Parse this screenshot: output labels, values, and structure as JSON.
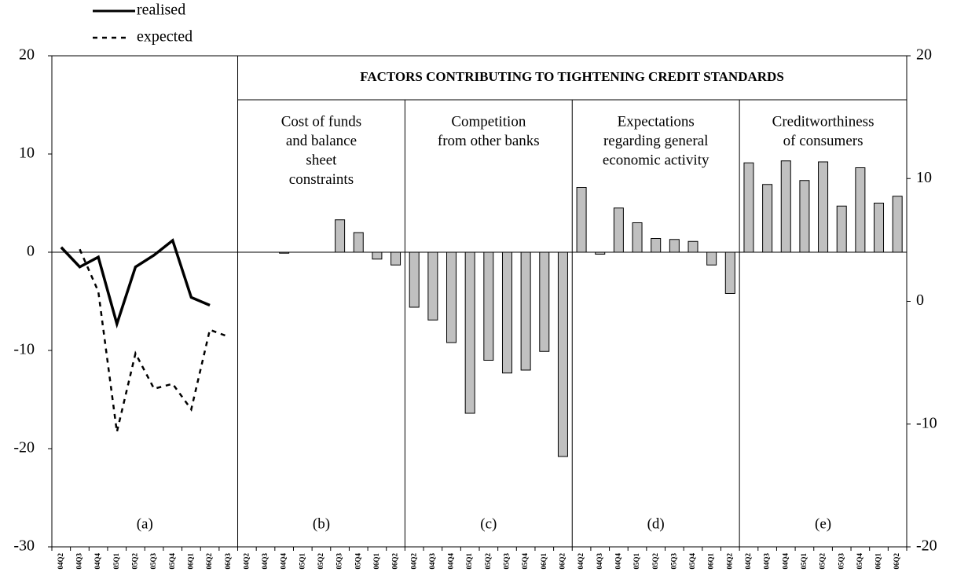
{
  "chart_data": {
    "type": "bar",
    "categories": [
      "04Q2",
      "04Q3",
      "04Q4",
      "05Q1",
      "05Q2",
      "05Q3",
      "05Q4",
      "06Q1",
      "06Q2",
      "06Q3",
      "04Q2",
      "04Q3",
      "04Q4",
      "05Q1",
      "05Q2",
      "05Q3",
      "05Q4",
      "06Q1",
      "06Q2",
      "04Q2",
      "04Q3",
      "04Q4",
      "05Q1",
      "05Q2",
      "05Q3",
      "05Q4",
      "06Q1",
      "06Q2",
      "04Q2",
      "04Q3",
      "04Q4",
      "05Q1",
      "05Q2",
      "05Q3",
      "05Q4",
      "06Q1",
      "06Q2",
      "04Q2",
      "04Q3",
      "04Q4",
      "05Q1",
      "05Q2",
      "05Q3",
      "05Q4",
      "06Q1",
      "06Q2"
    ],
    "values": [
      null,
      null,
      null,
      null,
      null,
      null,
      null,
      null,
      null,
      null,
      0,
      0,
      -0.1,
      0,
      0,
      3.3,
      2.0,
      -0.7,
      -1.3,
      -5.6,
      -6.9,
      -9.2,
      -16.4,
      -11.0,
      -12.3,
      -12.0,
      -10.1,
      -20.8,
      6.6,
      -0.2,
      4.5,
      3.0,
      1.4,
      1.3,
      1.1,
      -1.3,
      -4.2,
      9.1,
      6.9,
      9.3,
      7.3,
      9.2,
      4.7,
      8.6,
      5.0,
      5.7
    ],
    "color": "#c0c0c0",
    "series": [
      {
        "name": "realised",
        "color": "#000000",
        "dashed": false,
        "values": [
          0.5,
          -1.5,
          -0.5,
          -7.3,
          -1.5,
          -0.3,
          1.2,
          -4.6,
          -5.4,
          null,
          null,
          null,
          null,
          null,
          null,
          null,
          null,
          null,
          null,
          null,
          null,
          null,
          null,
          null,
          null,
          null,
          null,
          null,
          null,
          null,
          null,
          null,
          null,
          null,
          null,
          null,
          null,
          null,
          null,
          null,
          null,
          null,
          null,
          null,
          null,
          null
        ]
      },
      {
        "name": "expected",
        "color": "#000000",
        "dashed": true,
        "values": [
          null,
          0.3,
          -4.0,
          -18.3,
          -10.3,
          -13.9,
          -13.4,
          -16.0,
          -7.9,
          -8.6,
          null,
          null,
          null,
          null,
          null,
          null,
          null,
          null,
          null,
          null,
          null,
          null,
          null,
          null,
          null,
          null,
          null,
          null,
          null,
          null,
          null,
          null,
          null,
          null,
          null,
          null,
          null,
          null,
          null,
          null,
          null,
          null,
          null,
          null,
          null,
          null
        ]
      }
    ],
    "ylim": [
      -30,
      20
    ],
    "yticks": [
      -30,
      -20,
      -10,
      0,
      10,
      20
    ],
    "y2lim": [
      -20,
      20
    ],
    "y2ticks": [
      -20,
      -10,
      0,
      10,
      20
    ],
    "annotation": "FACTORS CONTRIBUTING TO TIGHTENING CREDIT STANDARDS",
    "panels": [
      {
        "label": "(a)"
      },
      {
        "label": "(b)",
        "title": [
          "Cost of funds",
          "and balance",
          "sheet",
          "constraints"
        ]
      },
      {
        "label": "(c)",
        "title": [
          "Competition",
          "from other banks"
        ]
      },
      {
        "label": "(d)",
        "title": [
          "Expectations",
          "regarding general",
          "economic activity"
        ]
      },
      {
        "label": "(e)",
        "title": [
          "Creditworthiness",
          "of consumers"
        ]
      }
    ]
  }
}
